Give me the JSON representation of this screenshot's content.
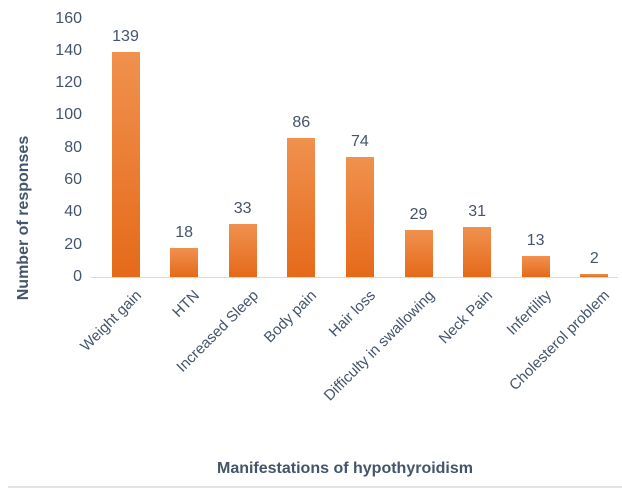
{
  "chart_data": {
    "type": "bar",
    "categories": [
      "Weight gain",
      "HTN",
      "Increased Sleep",
      "Body pain",
      "Hair loss",
      "Difficulty in swallowing",
      "Neck Pain",
      "Infertility",
      "Cholesterol problem"
    ],
    "values": [
      139,
      18,
      33,
      86,
      74,
      29,
      31,
      13,
      2
    ],
    "title": "",
    "xlabel": "Manifestations of hypothyroidism",
    "ylabel": "Number of responses",
    "ylim": [
      0,
      160
    ],
    "yticks": [
      0,
      20,
      40,
      60,
      80,
      100,
      120,
      140,
      160
    ],
    "grid": false,
    "legend_position": "none",
    "data_labels_shown": true,
    "colors": {
      "bar_gradient_top": "#F0914E",
      "bar_gradient_bottom": "#E56A1A",
      "text": "#44546A",
      "axis_line": "#D9D9D9",
      "page_bottom_rule": "#E2E2E2"
    }
  }
}
